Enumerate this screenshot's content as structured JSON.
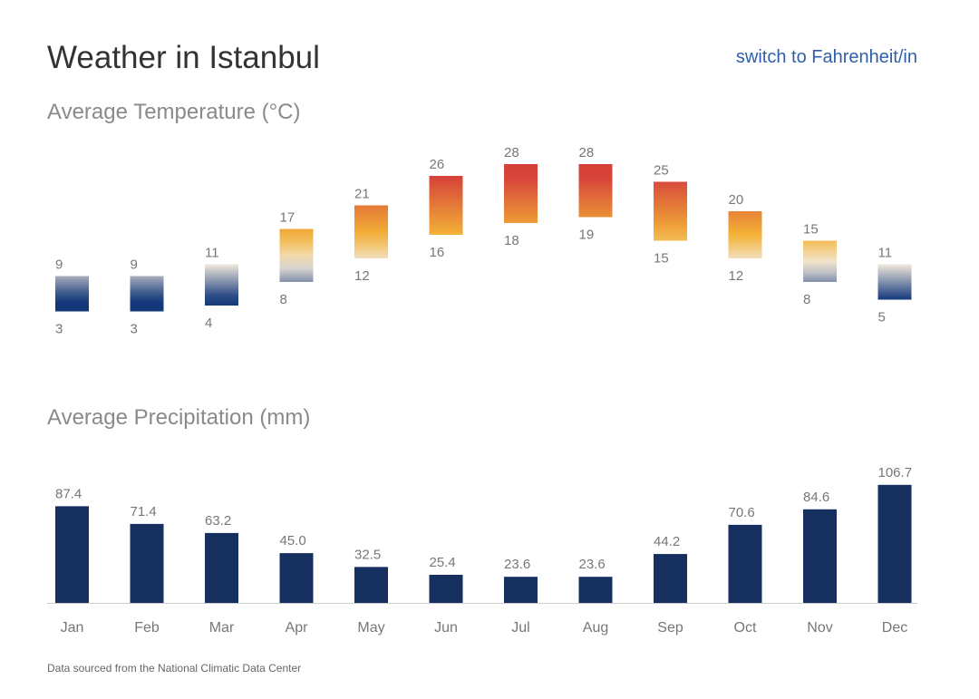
{
  "header": {
    "title": "Weather in Istanbul",
    "switch_label": "switch to Fahrenheit/in"
  },
  "chart_data": [
    {
      "type": "bar",
      "title": "Average Temperature (°C)",
      "categories": [
        "Jan",
        "Feb",
        "Mar",
        "Apr",
        "May",
        "Jun",
        "Jul",
        "Aug",
        "Sep",
        "Oct",
        "Nov",
        "Dec"
      ],
      "series": [
        {
          "name": "",
          "high": [
            9,
            9,
            11,
            17,
            21,
            26,
            28,
            28,
            25,
            20,
            15,
            11
          ],
          "low": [
            3,
            3,
            4,
            8,
            12,
            16,
            18,
            19,
            15,
            12,
            8,
            5
          ]
        }
      ],
      "colors": {
        "cold": "#13387a",
        "warm": "#f3b236",
        "hot": "#d6403a",
        "mid": "#f1e9dc"
      }
    },
    {
      "type": "bar",
      "title": "Average Precipitation (mm)",
      "categories": [
        "Jan",
        "Feb",
        "Mar",
        "Apr",
        "May",
        "Jun",
        "Jul",
        "Aug",
        "Sep",
        "Oct",
        "Nov",
        "Dec"
      ],
      "values": [
        "87.4",
        "71.4",
        "63.2",
        "45.0",
        "32.5",
        "25.4",
        "23.6",
        "23.6",
        "44.2",
        "70.6",
        "84.6",
        "106.7"
      ],
      "color": "#15305e"
    }
  ],
  "footer": {
    "source": "Data sourced from the National Climatic Data Center"
  }
}
